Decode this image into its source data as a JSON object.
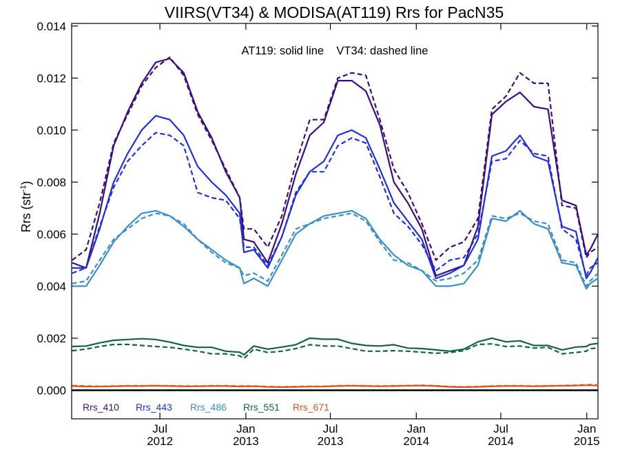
{
  "chart_data": {
    "type": "line",
    "title": "VIIRS(VT34) & MODISA(AT119)  Rrs for PacN35",
    "annotation": "AT119: solid line    VT34: dashed line",
    "ylabel": "Rrs (str",
    "ylabel_sup": "-1",
    "ylabel_close": ")",
    "xlim": [
      "2011-12-25",
      "2015-01-25"
    ],
    "ylim": [
      -0.0011,
      0.0141
    ],
    "yticks": [
      0.0,
      0.002,
      0.004,
      0.006,
      0.008,
      0.01,
      0.012,
      0.014
    ],
    "ytick_labels": [
      "0.000",
      "0.002",
      "0.004",
      "0.006",
      "0.008",
      "0.010",
      "0.012",
      "0.014"
    ],
    "xticks": [
      {
        "date": "2012-07-01",
        "line1": "Jul",
        "line2": "2012"
      },
      {
        "date": "2013-01-01",
        "line1": "Jan",
        "line2": "2013"
      },
      {
        "date": "2013-07-01",
        "line1": "Jul",
        "line2": "2013"
      },
      {
        "date": "2014-01-01",
        "line1": "Jan",
        "line2": "2014"
      },
      {
        "date": "2014-07-01",
        "line1": "Jul",
        "line2": "2014"
      },
      {
        "date": "2015-01-01",
        "line1": "Jan",
        "line2": "2015"
      }
    ],
    "zero_line": true,
    "legend_position": "bottom-left",
    "x": [
      "2011-12-26",
      "2012-01-25",
      "2012-02-23",
      "2012-03-24",
      "2012-04-23",
      "2012-05-23",
      "2012-06-22",
      "2012-07-22",
      "2012-08-21",
      "2012-09-20",
      "2012-10-20",
      "2012-11-19",
      "2012-12-19",
      "2012-12-28",
      "2013-01-18",
      "2013-02-17",
      "2013-03-19",
      "2013-04-18",
      "2013-05-18",
      "2013-06-17",
      "2013-07-17",
      "2013-08-16",
      "2013-09-15",
      "2013-10-15",
      "2013-11-14",
      "2013-12-14",
      "2014-01-13",
      "2014-02-12",
      "2014-03-14",
      "2014-04-13",
      "2014-05-13",
      "2014-06-12",
      "2014-07-12",
      "2014-08-11",
      "2014-09-10",
      "2014-10-10",
      "2014-11-09",
      "2014-12-09",
      "2014-12-31",
      "2015-01-08",
      "2015-01-25"
    ],
    "series": [
      {
        "name": "Rrs_410",
        "sensor": "AT119",
        "style": "solid",
        "color": "#3b0c7c",
        "values": [
          0.0049,
          0.0047,
          0.0068,
          0.0094,
          0.0107,
          0.0118,
          0.0126,
          0.01275,
          0.0122,
          0.0107,
          0.0097,
          0.0084,
          0.0074,
          0.0058,
          0.0057,
          0.0049,
          0.0064,
          0.0083,
          0.0098,
          0.0103,
          0.0119,
          0.0119,
          0.0115,
          0.0102,
          0.008,
          0.0072,
          0.0062,
          0.0044,
          0.0046,
          0.0048,
          0.0063,
          0.0106,
          0.0111,
          0.01145,
          0.0109,
          0.0108,
          0.0073,
          0.0071,
          0.0052,
          0.0054,
          0.006
        ]
      },
      {
        "name": "Rrs_410",
        "sensor": "VT34",
        "style": "dashed",
        "color": "#3b0c7c",
        "values": [
          0.005,
          0.0054,
          0.0072,
          0.0095,
          0.0106,
          0.0117,
          0.0124,
          0.0128,
          0.0121,
          0.0106,
          0.0096,
          0.0085,
          0.0074,
          0.0062,
          0.0062,
          0.0055,
          0.0067,
          0.0087,
          0.0104,
          0.0104,
          0.012,
          0.0122,
          0.0121,
          0.0104,
          0.0085,
          0.0076,
          0.0064,
          0.005,
          0.0055,
          0.0057,
          0.0066,
          0.0108,
          0.0113,
          0.0122,
          0.0118,
          0.0118,
          0.0071,
          0.007,
          0.0051,
          0.0053,
          0.0055
        ]
      },
      {
        "name": "Rrs_443",
        "sensor": "AT119",
        "style": "solid",
        "color": "#1e2ee0",
        "values": [
          0.0047,
          0.0047,
          0.0062,
          0.008,
          0.0091,
          0.01,
          0.01055,
          0.0104,
          0.0098,
          0.0086,
          0.008,
          0.0075,
          0.0068,
          0.0053,
          0.0054,
          0.0047,
          0.0059,
          0.0075,
          0.0084,
          0.0088,
          0.0098,
          0.01,
          0.0097,
          0.0085,
          0.0072,
          0.0065,
          0.0058,
          0.0043,
          0.0045,
          0.0048,
          0.0058,
          0.009,
          0.0092,
          0.0098,
          0.009,
          0.0088,
          0.0063,
          0.0061,
          0.0043,
          0.0045,
          0.0051
        ]
      },
      {
        "name": "Rrs_443",
        "sensor": "VT34",
        "style": "dashed",
        "color": "#1e2ee0",
        "values": [
          0.0045,
          0.0047,
          0.0063,
          0.0078,
          0.0088,
          0.0094,
          0.0099,
          0.0098,
          0.0094,
          0.0076,
          0.0074,
          0.0073,
          0.0066,
          0.0055,
          0.0055,
          0.0048,
          0.0059,
          0.0076,
          0.0084,
          0.0084,
          0.0094,
          0.0097,
          0.0095,
          0.0082,
          0.0068,
          0.0063,
          0.0056,
          0.0046,
          0.005,
          0.0051,
          0.006,
          0.0088,
          0.0089,
          0.0096,
          0.0091,
          0.009,
          0.0062,
          0.0058,
          0.0044,
          0.0047,
          0.0049
        ]
      },
      {
        "name": "Rrs_486",
        "sensor": "AT119",
        "style": "solid",
        "color": "#3a8fcb",
        "values": [
          0.004,
          0.004,
          0.0048,
          0.0057,
          0.0063,
          0.0068,
          0.0069,
          0.0067,
          0.0063,
          0.0058,
          0.0054,
          0.005,
          0.0047,
          0.0041,
          0.0043,
          0.004,
          0.005,
          0.006,
          0.0064,
          0.0067,
          0.0068,
          0.0069,
          0.0066,
          0.0058,
          0.0052,
          0.0048,
          0.0046,
          0.004,
          0.004,
          0.0041,
          0.0048,
          0.0066,
          0.0065,
          0.0069,
          0.0064,
          0.0062,
          0.0049,
          0.0048,
          0.0039,
          0.0041,
          0.0043
        ]
      },
      {
        "name": "Rrs_486",
        "sensor": "VT34",
        "style": "dashed",
        "color": "#3a8fcb",
        "values": [
          0.0041,
          0.0042,
          0.005,
          0.0058,
          0.0062,
          0.0066,
          0.0068,
          0.0067,
          0.0064,
          0.0058,
          0.0053,
          0.0049,
          0.0047,
          0.0044,
          0.0045,
          0.0042,
          0.0052,
          0.0062,
          0.0064,
          0.0066,
          0.0067,
          0.0068,
          0.0065,
          0.0057,
          0.005,
          0.0049,
          0.0046,
          0.0042,
          0.0043,
          0.0045,
          0.005,
          0.0067,
          0.0066,
          0.0068,
          0.0065,
          0.0064,
          0.005,
          0.0049,
          0.004,
          0.0042,
          0.0045
        ]
      },
      {
        "name": "Rrs_551",
        "sensor": "AT119",
        "style": "solid",
        "color": "#13643a",
        "values": [
          0.00168,
          0.0017,
          0.00182,
          0.00192,
          0.00195,
          0.00198,
          0.00195,
          0.00185,
          0.00172,
          0.00165,
          0.00165,
          0.0015,
          0.00146,
          0.00136,
          0.0017,
          0.00158,
          0.00166,
          0.00175,
          0.002,
          0.00196,
          0.00196,
          0.0018,
          0.00172,
          0.0017,
          0.00175,
          0.00162,
          0.0016,
          0.00155,
          0.0015,
          0.00158,
          0.00186,
          0.002,
          0.00186,
          0.0019,
          0.00172,
          0.00172,
          0.00155,
          0.00166,
          0.00168,
          0.00176,
          0.0018
        ]
      },
      {
        "name": "Rrs_551",
        "sensor": "VT34",
        "style": "dashed",
        "color": "#13643a",
        "values": [
          0.00152,
          0.00158,
          0.00168,
          0.00176,
          0.00176,
          0.00172,
          0.00168,
          0.00165,
          0.00158,
          0.0015,
          0.0014,
          0.0014,
          0.00132,
          0.00122,
          0.00158,
          0.00145,
          0.0015,
          0.0016,
          0.00175,
          0.0017,
          0.0017,
          0.0016,
          0.0015,
          0.0015,
          0.00152,
          0.0015,
          0.00146,
          0.00142,
          0.00145,
          0.00152,
          0.00176,
          0.00178,
          0.00168,
          0.0017,
          0.00162,
          0.00165,
          0.0014,
          0.00145,
          0.0015,
          0.0016,
          0.00162
        ]
      },
      {
        "name": "Rrs_671",
        "sensor": "AT119",
        "style": "solid",
        "color": "#d9541a",
        "values": [
          0.00016,
          0.00014,
          0.00014,
          0.00015,
          0.00016,
          0.00016,
          0.00017,
          0.00016,
          0.00015,
          0.00015,
          0.00016,
          0.00016,
          0.00014,
          0.00015,
          0.00015,
          0.00013,
          0.00012,
          0.00013,
          0.00014,
          0.00014,
          0.00016,
          0.00017,
          0.00016,
          0.00015,
          0.00016,
          0.00017,
          0.00018,
          0.00016,
          0.00013,
          0.00012,
          0.00013,
          0.00015,
          0.00016,
          0.00016,
          0.00015,
          0.00016,
          0.00017,
          0.00018,
          0.00019,
          0.00019,
          0.00018
        ]
      },
      {
        "name": "Rrs_671",
        "sensor": "VT34",
        "style": "dashed",
        "color": "#d9541a",
        "values": [
          0.00018,
          0.00016,
          0.00015,
          0.00016,
          0.00017,
          0.00017,
          0.00018,
          0.00017,
          0.00016,
          0.00016,
          0.00017,
          0.00017,
          0.00016,
          0.00016,
          0.00016,
          0.00014,
          0.00013,
          0.00014,
          0.00015,
          0.00015,
          0.00017,
          0.00018,
          0.00017,
          0.00016,
          0.00017,
          0.00018,
          0.00019,
          0.00017,
          0.00014,
          0.00013,
          0.00014,
          0.00016,
          0.00017,
          0.00017,
          0.00016,
          0.00017,
          0.00018,
          0.00019,
          0.00021,
          0.00021,
          0.0002
        ]
      }
    ],
    "legend": [
      {
        "label": "Rrs_410",
        "color": "#3b0c7c"
      },
      {
        "label": "Rrs_443",
        "color": "#1e2ee0"
      },
      {
        "label": "Rrs_486",
        "color": "#3a8fcb"
      },
      {
        "label": "Rrs_551",
        "color": "#13643a"
      },
      {
        "label": "Rrs_671",
        "color": "#d9541a"
      }
    ]
  }
}
